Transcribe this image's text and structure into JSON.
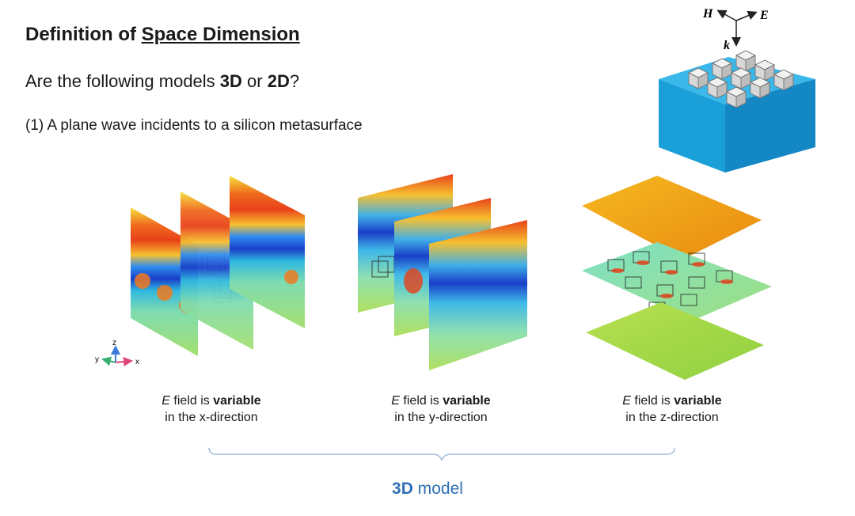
{
  "title": {
    "prefix": "Definition of ",
    "underlined": "Space Dimension"
  },
  "question": {
    "prefix": "Are the following models ",
    "opt1": "3D",
    "mid": " or ",
    "opt2": "2D",
    "suffix": "?"
  },
  "item1": "(1) A plane wave incidents to a silicon metasurface",
  "inset_labels": {
    "h": "H",
    "e": "E",
    "k": "k"
  },
  "axes_labels": {
    "z": "z",
    "y": "y",
    "x": "x"
  },
  "captions": [
    {
      "e": "E",
      "mid": " field is ",
      "bold": "variable",
      "line2": "in the x-direction"
    },
    {
      "e": "E",
      "mid": " field is ",
      "bold": "variable",
      "line2": "in the y-direction"
    },
    {
      "e": "E",
      "mid": " field is ",
      "bold": "variable",
      "line2": "in the z-direction"
    }
  ],
  "conclusion": {
    "bold": "3D",
    "rest": " model"
  },
  "colors": {
    "accent": "#2f6fb3",
    "substrate": "#1ea6dc",
    "plate_orange": "#f0a818"
  }
}
